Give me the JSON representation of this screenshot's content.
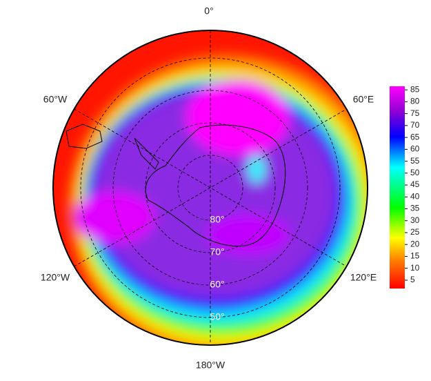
{
  "map": {
    "longitude_labels": [
      "0°",
      "60°E",
      "120°E",
      "180°W",
      "120°W",
      "60°W"
    ],
    "latitude_labels": [
      "80°",
      "70°",
      "60°",
      "50°"
    ],
    "colorbar": {
      "lim": [
        1.5,
        86.5
      ],
      "ticks": [
        5,
        10,
        15,
        20,
        25,
        30,
        35,
        40,
        45,
        50,
        55,
        60,
        65,
        70,
        75,
        80,
        85
      ]
    }
  }
}
